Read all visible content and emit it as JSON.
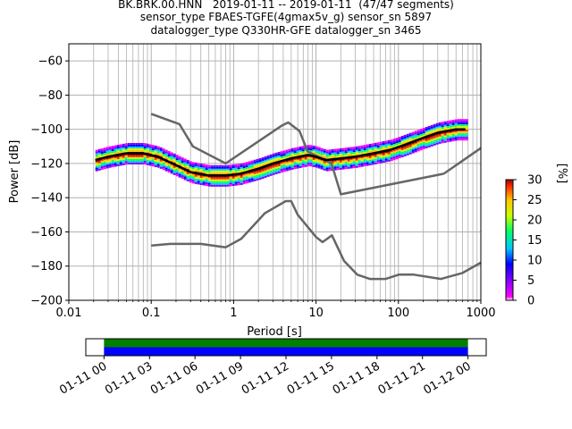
{
  "title_lines": [
    "BK.BRK.00.HNN   2019-01-11 -- 2019-01-11  (47/47 segments)",
    "sensor_type FBAES-TGFE(4gmax5v_g) sensor_sn 5897",
    "datalogger_type Q330HR-GFE datalogger_sn 3465"
  ],
  "chart_data": [
    {
      "type": "heatmap",
      "title": "BK.BRK.00.HNN   2019-01-11 -- 2019-01-11  (47/47 segments)",
      "xlabel": "Period [s]",
      "ylabel": "Power [dB]",
      "x_scale": "log",
      "xlim": [
        0.01,
        1000
      ],
      "ylim": [
        -200,
        -50
      ],
      "x_ticks": [
        0.01,
        0.1,
        1,
        10,
        100,
        1000
      ],
      "x_tick_labels": [
        "0.01",
        "0.1",
        "1",
        "10",
        "100",
        "1000"
      ],
      "y_ticks": [
        -200,
        -180,
        -160,
        -140,
        -120,
        -100,
        -80,
        -60
      ],
      "y_tick_labels": [
        "−200",
        "−180",
        "−160",
        "−140",
        "−120",
        "−100",
        "−80",
        "−60"
      ],
      "grid": true,
      "colorbar": {
        "label": "[%]",
        "range": [
          0,
          30
        ],
        "ticks": [
          0,
          5,
          10,
          15,
          20,
          25,
          30
        ],
        "tick_labels": [
          "0",
          "5",
          "10",
          "15",
          "20",
          "25",
          "30"
        ],
        "colormap": "pqlx"
      },
      "band_width_db": 6,
      "median_curve": {
        "x": [
          0.021,
          0.03,
          0.05,
          0.08,
          0.12,
          0.2,
          0.3,
          0.5,
          0.8,
          1.2,
          2,
          3,
          5,
          8,
          10,
          13,
          20,
          30,
          50,
          80,
          120,
          200,
          300,
          500,
          650
        ],
        "y": [
          -118,
          -116,
          -114,
          -114,
          -116,
          -121,
          -125,
          -127,
          -127,
          -126,
          -123,
          -120,
          -117,
          -115,
          -116,
          -118,
          -117,
          -116,
          -114,
          -112,
          -109,
          -105,
          -102,
          -100,
          -100
        ]
      },
      "noise_models": [
        {
          "x": [
            0.1,
            0.22,
            0.32,
            0.8,
            3.8,
            4.6,
            6.3,
            7.9,
            15.4,
            20,
            354.8
          ],
          "y": [
            -91,
            -97,
            -110,
            -120,
            -98,
            -96,
            -101,
            -113,
            -120,
            -138,
            -126
          ]
        },
        {
          "x": [
            0.1,
            0.17,
            0.4,
            0.8,
            1.24,
            2.4,
            4.3,
            5,
            6,
            10,
            12,
            15.6,
            21.9,
            31.6,
            45,
            70,
            101,
            154,
            328,
            600,
            1000
          ],
          "y": [
            -168,
            -167,
            -167,
            -169,
            -164,
            -149,
            -142,
            -142,
            -150,
            -163,
            -166,
            -162,
            -177,
            -185,
            -187.5,
            -187.5,
            -185,
            -185,
            -187.5,
            -184,
            -178
          ]
        },
        {
          "x": [
            354.8,
            1000
          ],
          "y": [
            -126,
            -111
          ]
        }
      ]
    },
    {
      "type": "timeline",
      "x_tick_labels": [
        "01-11 00",
        "01-11 03",
        "01-11 06",
        "01-11 09",
        "01-11 12",
        "01-11 15",
        "01-11 18",
        "01-11 21",
        "01-12 00"
      ],
      "x_tick_hours": [
        0,
        3,
        6,
        9,
        12,
        15,
        18,
        21,
        24
      ],
      "xlim_hours": [
        -1.2,
        25.2
      ],
      "series": [
        {
          "color": "#008000",
          "start_hour": 0,
          "end_hour": 24
        },
        {
          "color": "#0000ff",
          "start_hour": 0,
          "end_hour": 24
        }
      ]
    }
  ],
  "colors": {
    "median": "#000000",
    "noise_model": "#666666",
    "grid": "#b0b0b0"
  }
}
